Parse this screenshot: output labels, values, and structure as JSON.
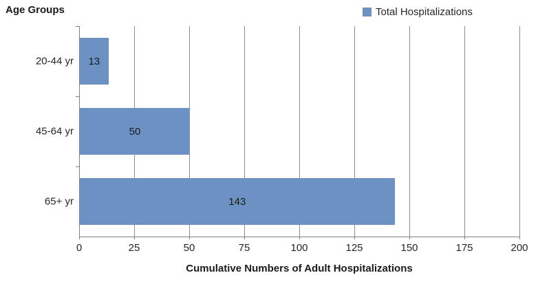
{
  "chart": {
    "title": "Age Groups",
    "legend_label": "Total Hospitalizations",
    "x_axis_title": "Cumulative Numbers of Adult Hospitalizations"
  },
  "chart_data": {
    "type": "bar",
    "orientation": "horizontal",
    "title": "Age Groups",
    "categories": [
      "20-44 yr",
      "45-64 yr",
      "65+ yr"
    ],
    "series": [
      {
        "name": "Total Hospitalizations",
        "values": [
          13,
          50,
          143
        ]
      }
    ],
    "data_labels": [
      13,
      50,
      143
    ],
    "xlabel": "Cumulative Numbers of Adult Hospitalizations",
    "ylabel": "Age Groups",
    "xlim": [
      0,
      200
    ],
    "xticks": [
      0,
      25,
      50,
      75,
      100,
      125,
      150,
      175,
      200
    ],
    "grid": true,
    "legend_position": "top-right",
    "data_label_position": "center",
    "colors": {
      "bar": "#6C92C4",
      "grid": "#8C8C8C",
      "axis": "#808080",
      "text": "#262626"
    }
  }
}
